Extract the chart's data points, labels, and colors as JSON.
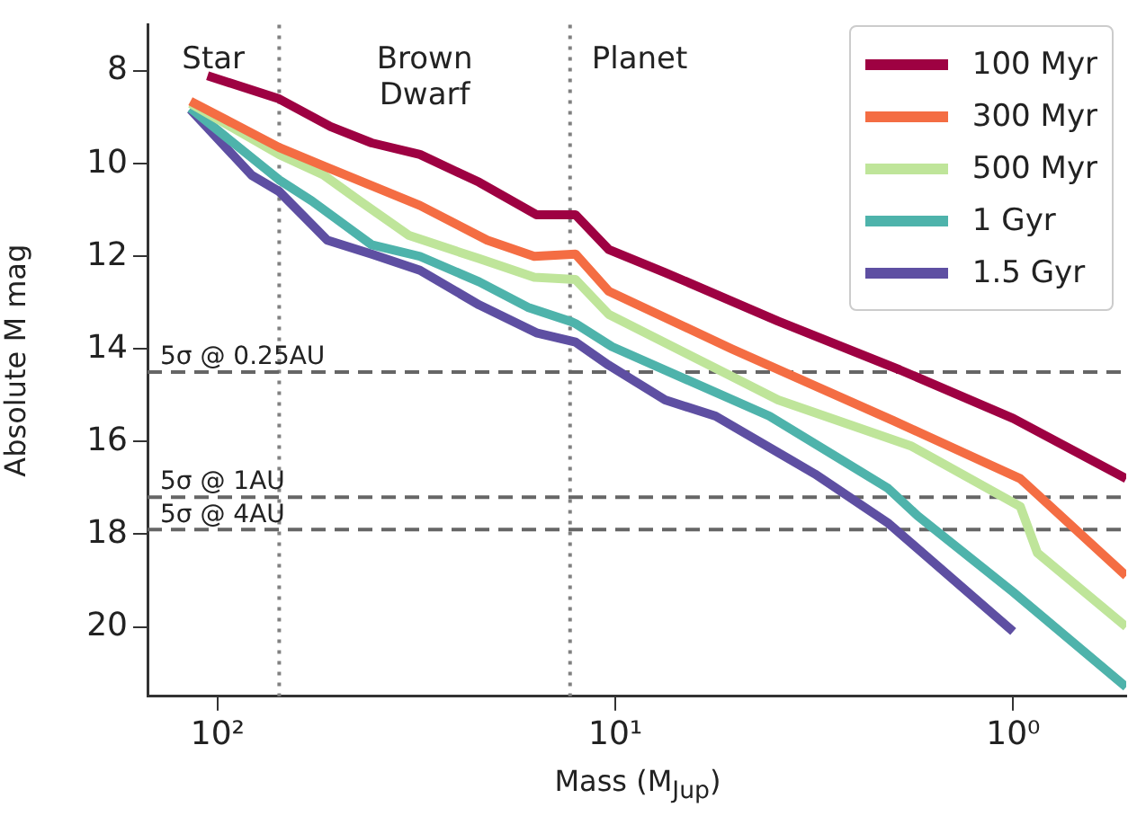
{
  "chart_data": {
    "type": "line",
    "xlabel": "Mass (M$_{Jup}$)",
    "ylabel": "Absolute M mag",
    "log": "x",
    "xlim": [
      150,
      0.52
    ],
    "xticks": [
      {
        "value": 100,
        "label": "10²"
      },
      {
        "value": 10,
        "label": "10¹"
      },
      {
        "value": 1,
        "label": "10⁰"
      }
    ],
    "ylim": [
      21.5,
      7
    ],
    "yticks": [
      8,
      10,
      12,
      14,
      16,
      18,
      20
    ],
    "grid": false,
    "legend": "top right",
    "marker": "none",
    "line_style": "solid",
    "series": [
      {
        "name": "100 Myr",
        "color": "#9e0142",
        "x": [
          106,
          70,
          52,
          41,
          31,
          22,
          15.8,
          12.6,
          10.4,
          7.5,
          3.9,
          1.93,
          1.0,
          0.52
        ],
        "values": [
          8.1,
          8.6,
          9.2,
          9.55,
          9.8,
          10.4,
          11.1,
          11.1,
          11.85,
          12.35,
          13.4,
          14.45,
          15.5,
          16.8
        ]
      },
      {
        "name": "300 Myr",
        "color": "#f46d43",
        "x": [
          117,
          70,
          54,
          31,
          21,
          16,
          12.6,
          10.4,
          5.1,
          2.0,
          0.96,
          0.52
        ],
        "values": [
          8.65,
          9.65,
          10.05,
          10.9,
          11.65,
          12.0,
          11.95,
          12.75,
          14.0,
          15.55,
          16.8,
          18.9
        ]
      },
      {
        "name": "500 Myr",
        "color": "#bfe59a",
        "x": [
          117,
          70,
          54,
          44,
          33,
          22,
          16,
          12.6,
          10.4,
          5.5,
          3.9,
          1.8,
          0.96,
          0.87,
          0.52
        ],
        "values": [
          8.7,
          9.8,
          10.25,
          10.8,
          11.55,
          12.05,
          12.45,
          12.5,
          13.25,
          14.45,
          15.1,
          16.1,
          17.4,
          18.4,
          20.0
        ]
      },
      {
        "name": "1 Gyr",
        "color": "#4eb3ab",
        "x": [
          117,
          70,
          58,
          41,
          31,
          22,
          16.6,
          13,
          12.6,
          10.2,
          4.1,
          2.07,
          1.74,
          1.0,
          0.52
        ],
        "values": [
          8.8,
          10.35,
          10.8,
          11.75,
          12.0,
          12.55,
          13.1,
          13.4,
          13.45,
          13.95,
          15.45,
          17.0,
          17.6,
          19.25,
          21.3
        ]
      },
      {
        "name": "1.5 Gyr",
        "color": "#5e4fa2",
        "x": [
          117,
          82,
          70,
          53,
          41,
          31,
          22,
          15.8,
          12.6,
          10.4,
          7.5,
          5.6,
          3.15,
          2.07,
          1.0
        ],
        "values": [
          8.83,
          10.25,
          10.6,
          11.65,
          11.95,
          12.3,
          13.05,
          13.65,
          13.85,
          14.35,
          15.1,
          15.45,
          16.7,
          17.75,
          20.1
        ]
      }
    ],
    "ref_lines": [
      {
        "axis": "x",
        "value": 70,
        "color": "#808080",
        "line_style": "dotted"
      },
      {
        "axis": "x",
        "value": 13,
        "color": "#808080",
        "line_style": "dotted"
      },
      {
        "axis": "y",
        "value": 14.5,
        "label": "5σ @ 0.25AU",
        "color": "#666666",
        "line_style": "dashed"
      },
      {
        "axis": "y",
        "value": 17.2,
        "label": "5σ @ 1AU",
        "color": "#666666",
        "line_style": "dashed"
      },
      {
        "axis": "y",
        "value": 17.9,
        "label": "5σ @ 4AU",
        "color": "#666666",
        "line_style": "dashed"
      }
    ],
    "annotations": [
      "Star",
      "Brown\nDwarf",
      "Planet"
    ]
  }
}
